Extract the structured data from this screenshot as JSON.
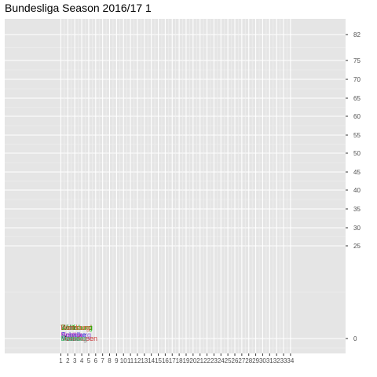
{
  "chart_data": {
    "type": "scatter",
    "title": "Bundesliga Season 2016/17 1",
    "xlabel": "",
    "ylabel": "",
    "x_ticks": [
      1,
      2,
      3,
      4,
      5,
      6,
      7,
      8,
      9,
      10,
      11,
      12,
      13,
      14,
      15,
      16,
      17,
      18,
      19,
      20,
      21,
      22,
      23,
      24,
      25,
      26,
      27,
      28,
      29,
      30,
      31,
      32,
      33,
      34
    ],
    "y_ticks": [
      0,
      25,
      30,
      35,
      40,
      45,
      50,
      55,
      60,
      65,
      70,
      75,
      82
    ],
    "y_axis_side": "right",
    "grid": true,
    "points": [
      {
        "team": "Wolfsburg",
        "x": 1,
        "y": 3,
        "color": "#00c000"
      },
      {
        "team": "Dortmund",
        "x": 1,
        "y": 3,
        "color": "#7a7a00"
      },
      {
        "team": "Köln",
        "x": 1,
        "y": 3,
        "color": "#2a6a2a"
      },
      {
        "team": "Hamburg",
        "x": 1,
        "y": 3,
        "color": "#e35b4a"
      },
      {
        "team": "Augsburg",
        "x": 1,
        "y": 1,
        "color": "#8c5bd6"
      },
      {
        "team": "Schalke",
        "x": 1,
        "y": 1,
        "color": "#3a3ad6"
      },
      {
        "team": "Hertha",
        "x": 1,
        "y": 1,
        "color": "#c23ac2"
      },
      {
        "team": "Mainz",
        "x": 1,
        "y": 0,
        "color": "#333333"
      },
      {
        "team": "Leverkusen",
        "x": 1,
        "y": 0,
        "color": "#c83232"
      },
      {
        "team": "Freiburg",
        "x": 1,
        "y": 0,
        "color": "#808080"
      },
      {
        "team": "Bremen",
        "x": 1,
        "y": 0,
        "color": "#4ad68a"
      }
    ]
  }
}
